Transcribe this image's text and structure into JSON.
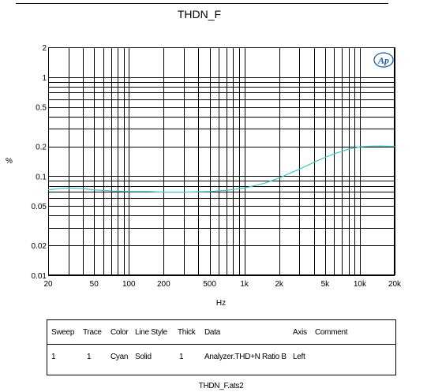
{
  "chart_data": {
    "type": "line",
    "title": "THDN_F",
    "xlabel": "Hz",
    "ylabel": "%",
    "xscale": "log",
    "yscale": "log",
    "xlim": [
      20,
      20000
    ],
    "ylim": [
      0.01,
      2
    ],
    "grid": true,
    "x_ticks": [
      {
        "value": 20,
        "label": "20"
      },
      {
        "value": 50,
        "label": "50"
      },
      {
        "value": 100,
        "label": "100"
      },
      {
        "value": 200,
        "label": "200"
      },
      {
        "value": 500,
        "label": "500"
      },
      {
        "value": 1000,
        "label": "1k"
      },
      {
        "value": 2000,
        "label": "2k"
      },
      {
        "value": 5000,
        "label": "5k"
      },
      {
        "value": 10000,
        "label": "10k"
      },
      {
        "value": 20000,
        "label": "20k"
      }
    ],
    "y_ticks": [
      {
        "value": 2,
        "label": "2"
      },
      {
        "value": 1,
        "label": "1"
      },
      {
        "value": 0.5,
        "label": "0.5"
      },
      {
        "value": 0.2,
        "label": "0.2"
      },
      {
        "value": 0.1,
        "label": "0.1"
      },
      {
        "value": 0.05,
        "label": "0.05"
      },
      {
        "value": 0.02,
        "label": "0.02"
      },
      {
        "value": 0.01,
        "label": "0.01"
      }
    ],
    "series": [
      {
        "color": "#3cc8c8",
        "x": [
          20,
          25,
          30,
          40,
          50,
          70,
          100,
          150,
          200,
          300,
          500,
          700,
          1000,
          1500,
          2000,
          3000,
          4000,
          5000,
          6000,
          8000,
          10000,
          12000,
          15000,
          20000
        ],
        "y": [
          0.073,
          0.075,
          0.076,
          0.075,
          0.073,
          0.071,
          0.07,
          0.07,
          0.069,
          0.069,
          0.07,
          0.072,
          0.076,
          0.085,
          0.096,
          0.118,
          0.138,
          0.155,
          0.168,
          0.188,
          0.198,
          0.201,
          0.202,
          0.2
        ]
      }
    ]
  },
  "logo": "Ap",
  "legend": {
    "headers": [
      "Sweep",
      "Trace",
      "Color",
      "Line Style",
      "Thick",
      "Data",
      "Axis",
      "Comment"
    ],
    "row": [
      "1",
      "1",
      "Cyan",
      "Solid",
      "1",
      "Analyzer.THD+N Ratio B",
      "Left",
      ""
    ]
  },
  "filename": "THDN_F.ats2"
}
